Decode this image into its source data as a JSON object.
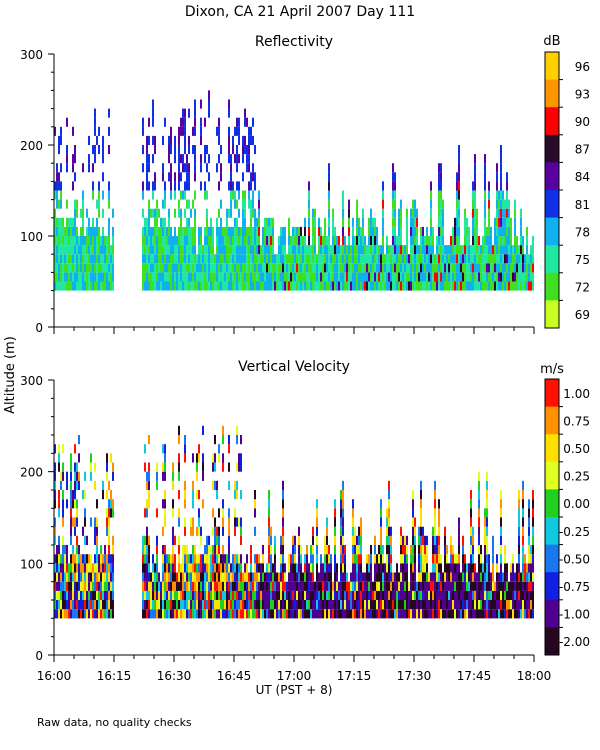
{
  "title": "Dixon, CA 21 April 2007  Day 111",
  "shared_ylabel": "Altitude  (m)",
  "shared_xlabel": "UT  (PST + 8)",
  "footnote": "Raw data, no quality checks",
  "x_ticks": [
    "16:00",
    "16:15",
    "16:30",
    "16:45",
    "17:00",
    "17:15",
    "17:30",
    "17:45",
    "18:00"
  ],
  "chart_data": [
    {
      "type": "heatmap",
      "title": "Reflectivity",
      "xlabel": "UT  (PST + 8)",
      "ylabel": "Altitude  (m)",
      "xlim": [
        "16:00",
        "18:00"
      ],
      "ylim": [
        0,
        300
      ],
      "y_ticks": [
        0,
        100,
        200,
        300
      ],
      "colorbar": {
        "unit": "dB",
        "labels": [
          "96",
          "93",
          "90",
          "87",
          "84",
          "81",
          "78",
          "75",
          "72",
          "69"
        ],
        "colors": [
          "#ffd000",
          "#ff9600",
          "#ff0000",
          "#2a0a2a",
          "#5a00a0",
          "#1030e8",
          "#10b0f0",
          "#20e8a0",
          "#40e020",
          "#c8ff20"
        ]
      },
      "regions": [
        {
          "start": "16:00",
          "end": "16:15",
          "bottom_m": 40,
          "top_m": 240,
          "dominant": "81-84 dB aloft, 72-78 dB below 100 m"
        },
        {
          "start": "16:22",
          "end": "16:51",
          "bottom_m": 40,
          "top_m": 260,
          "dominant": "81 dB aloft, 75-78 dB below 100 m"
        },
        {
          "start": "16:51",
          "end": "18:00",
          "bottom_m": 40,
          "top_m": 200,
          "dominant": "75-81 dB, patches of 84-90 dB"
        }
      ]
    },
    {
      "type": "heatmap",
      "title": "Vertical Velocity",
      "xlabel": "UT  (PST + 8)",
      "ylabel": "Altitude  (m)",
      "xlim": [
        "16:00",
        "18:00"
      ],
      "ylim": [
        0,
        300
      ],
      "y_ticks": [
        0,
        100,
        200,
        300
      ],
      "colorbar": {
        "unit": "m/s",
        "labels": [
          "1.00",
          "0.75",
          "0.50",
          "0.25",
          "0.00",
          "-0.25",
          "-0.50",
          "-0.75",
          "-1.00",
          "-2.00"
        ],
        "colors": [
          "#ff1000",
          "#ff9000",
          "#ffe000",
          "#e0ff20",
          "#20d020",
          "#10c8e0",
          "#1878f0",
          "#1020e0",
          "#500090",
          "#250820"
        ]
      },
      "regions": [
        {
          "start": "16:00",
          "end": "16:15",
          "bottom_m": 40,
          "top_m": 240,
          "dominant": "0.25-1.00 m/s aloft, mixed below"
        },
        {
          "start": "16:22",
          "end": "16:51",
          "bottom_m": 40,
          "top_m": 260,
          "dominant": "mixed -0.75 to 0.75 m/s"
        },
        {
          "start": "16:51",
          "end": "18:00",
          "bottom_m": 40,
          "top_m": 200,
          "dominant": "-2.00 to -0.75 m/s below 100 m, updrafts up to 1.00 m/s"
        }
      ]
    }
  ]
}
